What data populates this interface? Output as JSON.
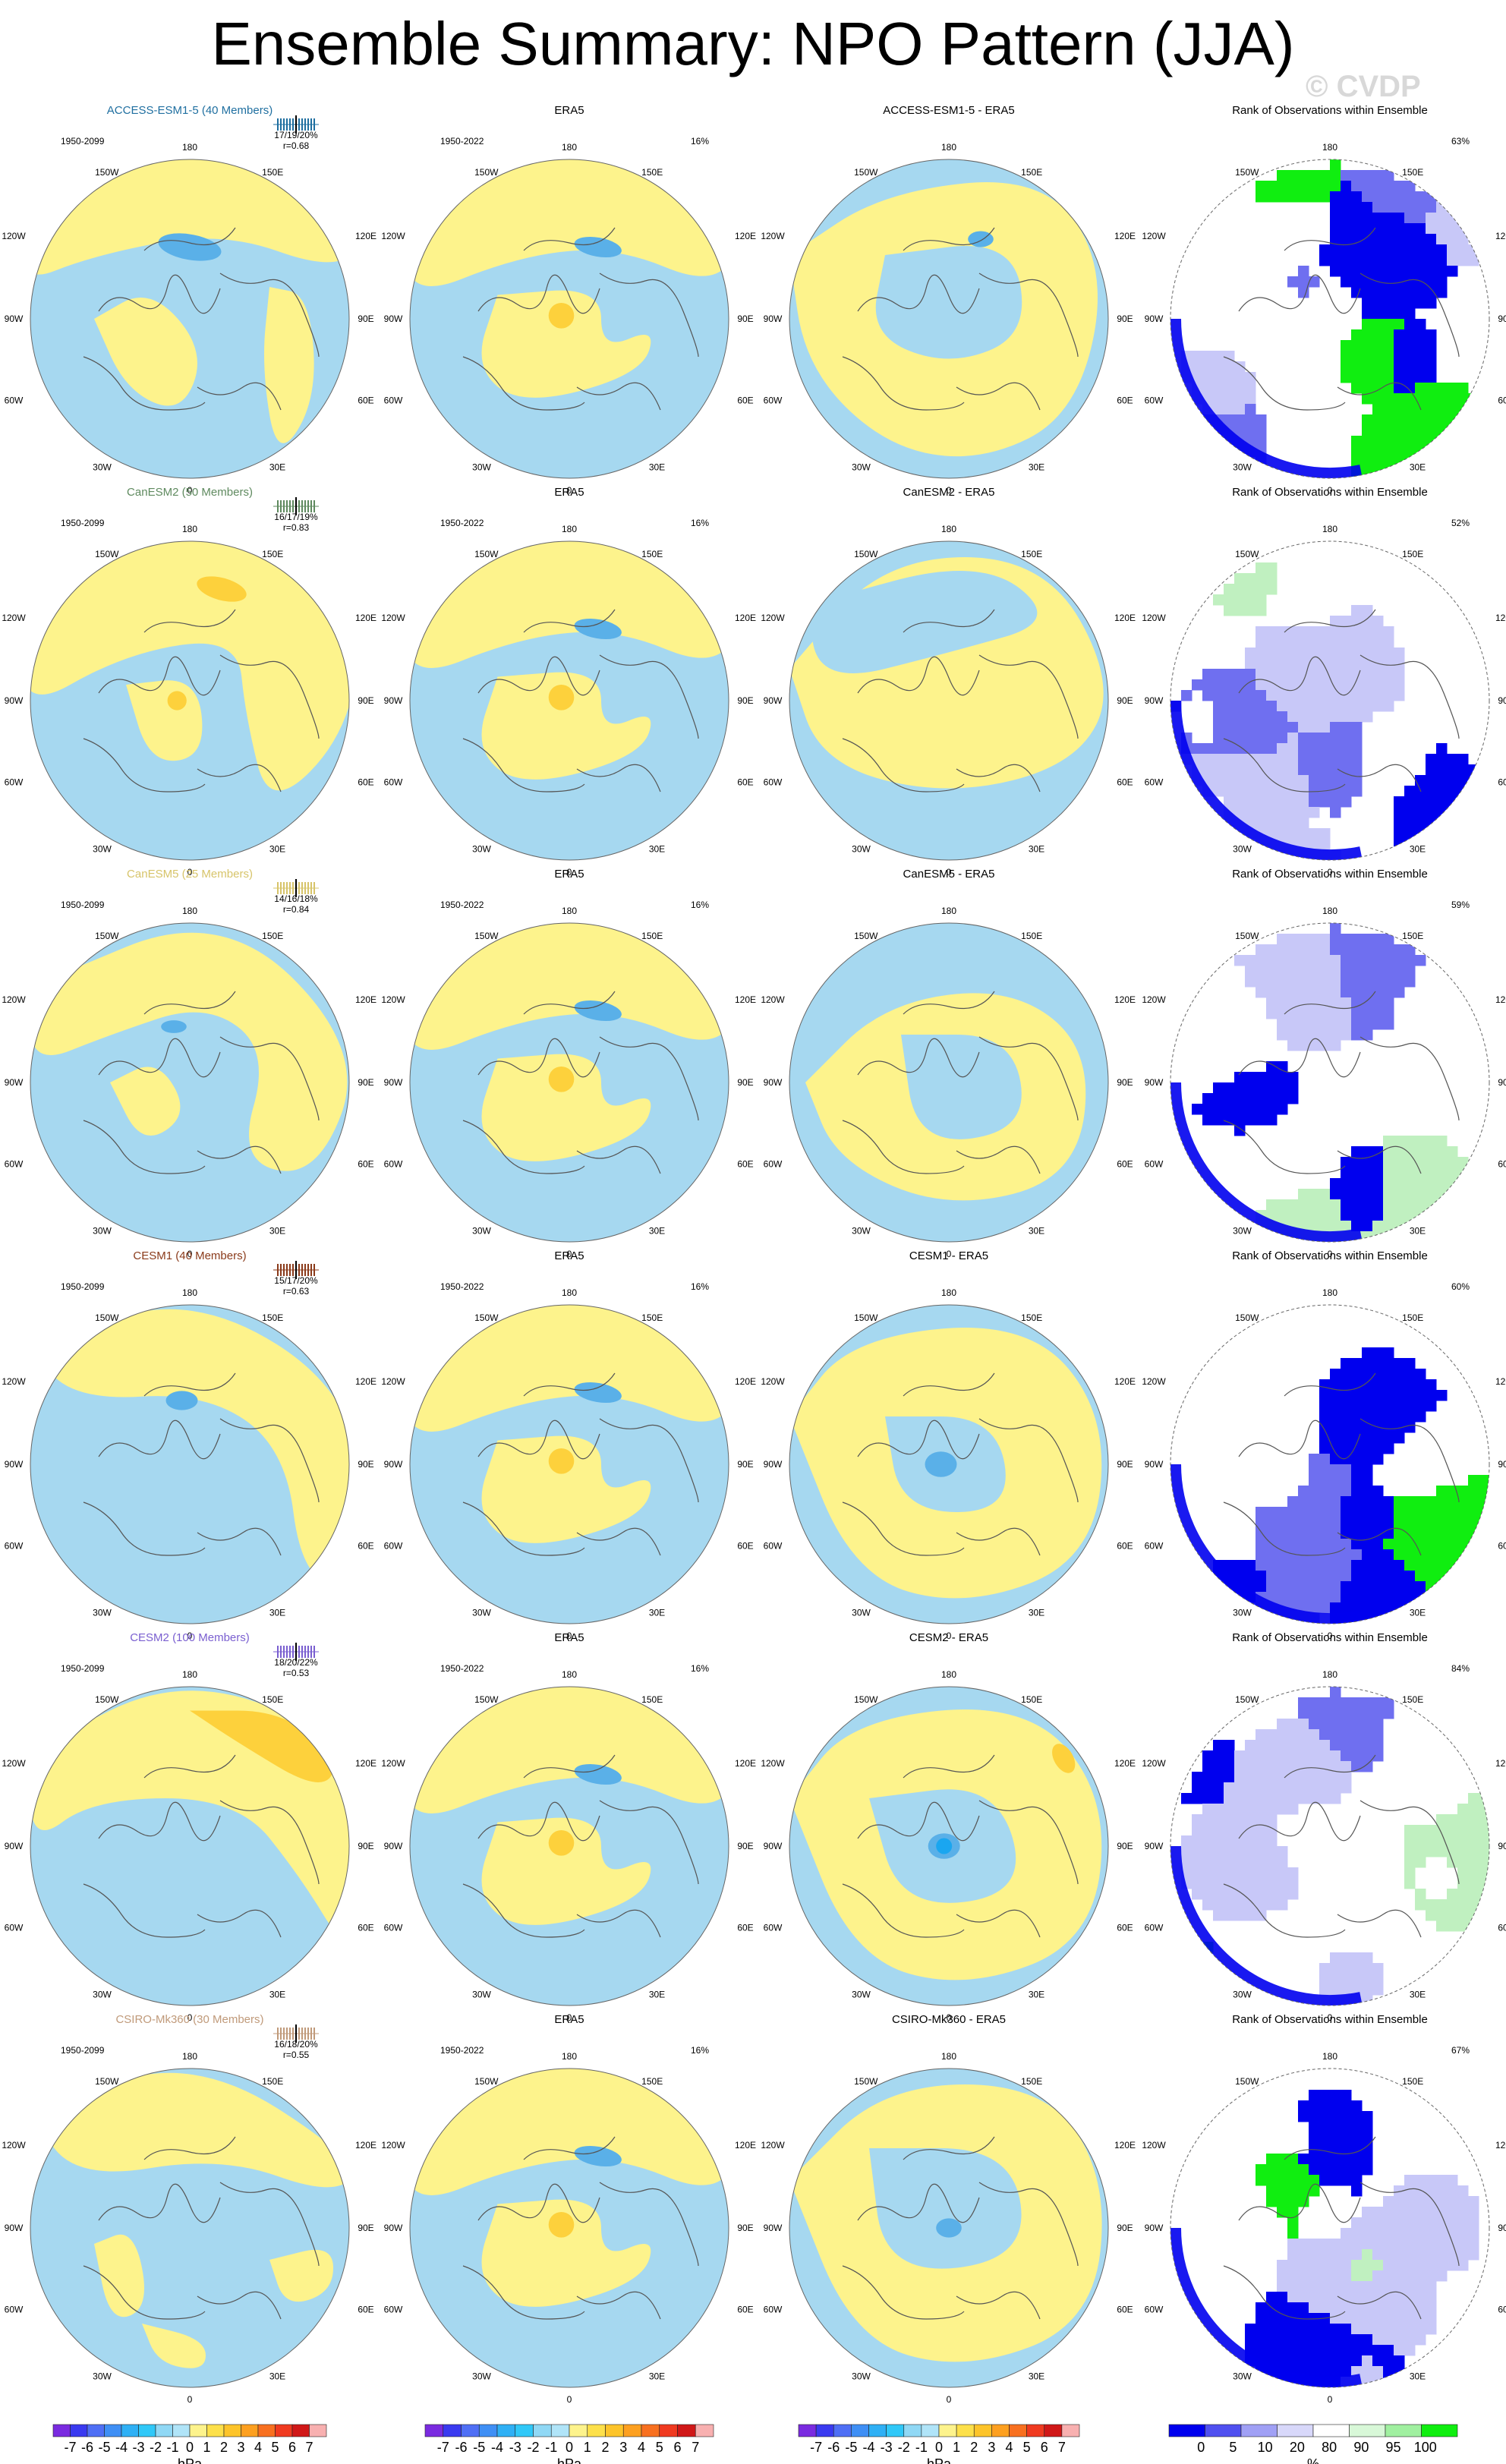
{
  "title": "Ensemble Summary: NPO Pattern (JJA)",
  "watermark": "© CVDP",
  "lon_labels": [
    "180",
    "150W",
    "150E",
    "120W",
    "120E",
    "90W",
    "90E",
    "60W",
    "60E",
    "30W",
    "30E",
    "0"
  ],
  "colors": {
    "neg_light": "#a6d8f0",
    "pos_light": "#fdf38c",
    "pos_mid": "#fdd13c",
    "neg_mid": "#5ab0e8",
    "neg_strong": "#1aa6f0",
    "rank_blue": "#0000ee",
    "rank_blue_mid": "#6f6ff0",
    "rank_blue_light": "#c8c8f8",
    "rank_green": "#10ee10",
    "rank_green_light": "#c0f0c0"
  },
  "rows": [
    {
      "model": "ACCESS-ESM1-5 (40 Members)",
      "model_color": "#1f6fa0",
      "model_period": "1950-2099",
      "spread": "17/19/20%",
      "corr": "r=0.68",
      "obs_title": "ERA5",
      "obs_period": "1950-2022",
      "obs_pct": "16%",
      "diff_title": "ACCESS-ESM1-5 - ERA5",
      "rank_title": "Rank of Observations within Ensemble",
      "rank_pct": "63%"
    },
    {
      "model": "CanESM2 (50 Members)",
      "model_color": "#5f8a5f",
      "model_period": "1950-2099",
      "spread": "16/17/19%",
      "corr": "r=0.83",
      "obs_title": "ERA5",
      "obs_period": "1950-2022",
      "obs_pct": "16%",
      "diff_title": "CanESM2 - ERA5",
      "rank_title": "Rank of Observations within Ensemble",
      "rank_pct": "52%"
    },
    {
      "model": "CanESM5 (25 Members)",
      "model_color": "#d7c46a",
      "model_period": "1950-2099",
      "spread": "14/16/18%",
      "corr": "r=0.84",
      "obs_title": "ERA5",
      "obs_period": "1950-2022",
      "obs_pct": "16%",
      "diff_title": "CanESM5 - ERA5",
      "rank_title": "Rank of Observations within Ensemble",
      "rank_pct": "59%"
    },
    {
      "model": "CESM1 (40 Members)",
      "model_color": "#8a3a1a",
      "model_period": "1950-2099",
      "spread": "15/17/20%",
      "corr": "r=0.63",
      "obs_title": "ERA5",
      "obs_period": "1950-2022",
      "obs_pct": "16%",
      "diff_title": "CESM1 - ERA5",
      "rank_title": "Rank of Observations within Ensemble",
      "rank_pct": "60%"
    },
    {
      "model": "CESM2 (100 Members)",
      "model_color": "#7a5fd0",
      "model_period": "1950-2099",
      "spread": "18/20/22%",
      "corr": "r=0.53",
      "obs_title": "ERA5",
      "obs_period": "1950-2022",
      "obs_pct": "16%",
      "diff_title": "CESM2 - ERA5",
      "rank_title": "Rank of Observations within Ensemble",
      "rank_pct": "84%"
    },
    {
      "model": "CSIRO-Mk360 (30 Members)",
      "model_color": "#c09a7a",
      "model_period": "1950-2099",
      "spread": "16/18/20%",
      "corr": "r=0.55",
      "obs_title": "ERA5",
      "obs_period": "1950-2022",
      "obs_pct": "16%",
      "diff_title": "CSIRO-Mk360 - ERA5",
      "rank_title": "Rank of Observations within Ensemble",
      "rank_pct": "67%"
    }
  ],
  "colorbars": {
    "hpa": {
      "ticks": [
        "-7",
        "-6",
        "-5",
        "-4",
        "-3",
        "-2",
        "-1",
        "0",
        "1",
        "2",
        "3",
        "4",
        "5",
        "6",
        "7"
      ],
      "unit": "hPa",
      "colors": [
        "#7a2be0",
        "#3a3af0",
        "#4f6ff5",
        "#3f8ff5",
        "#2fb0f5",
        "#30c8f8",
        "#90d8f5",
        "#b0e4f8",
        "#fdf38c",
        "#fde04a",
        "#fdc42a",
        "#fda020",
        "#f87020",
        "#f03a20",
        "#d01818",
        "#f8b0b0"
      ]
    },
    "rank": {
      "ticks": [
        "0",
        "5",
        "10",
        "20",
        "80",
        "90",
        "95",
        "100"
      ],
      "unit": "%",
      "colors": [
        "#0000ee",
        "#5050f0",
        "#a0a0f5",
        "#d8d8fa",
        "#ffffff",
        "#d8f8d8",
        "#a0f0a0",
        "#10ee10"
      ]
    }
  }
}
